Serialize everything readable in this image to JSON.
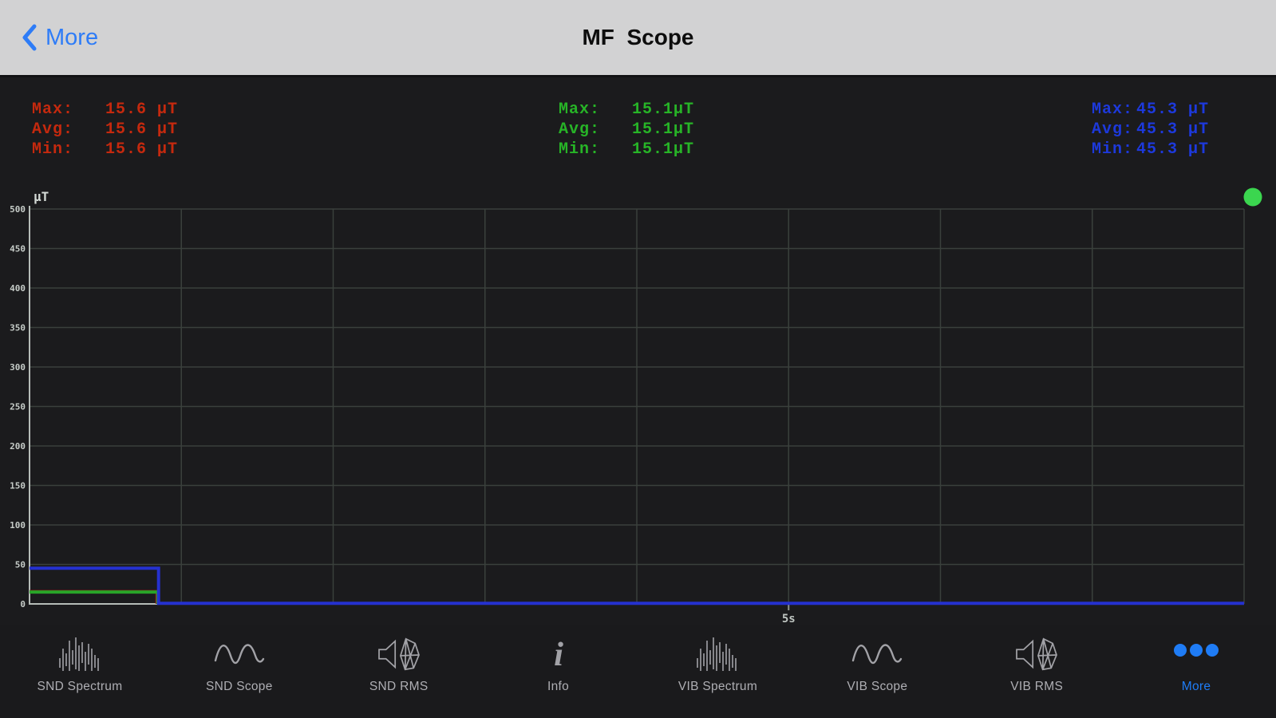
{
  "nav": {
    "back_label": "More",
    "title": "MF  Scope",
    "accent_color": "#2e7cf7",
    "title_color": "#0d0d0d",
    "bar_color": "#d2d2d3"
  },
  "stats_panels": [
    {
      "channel": "red",
      "color": "#c5290e",
      "rows": [
        [
          "Max:",
          "15.6 µT"
        ],
        [
          "Avg:",
          "15.6 µT"
        ],
        [
          "Min:",
          "15.6 µT"
        ]
      ]
    },
    {
      "channel": "green",
      "color": "#27b427",
      "rows": [
        [
          "Max:",
          "15.1µT"
        ],
        [
          "Avg:",
          "15.1µT"
        ],
        [
          "Min:",
          "15.1µT"
        ]
      ]
    },
    {
      "channel": "blue",
      "color": "#1d39dc",
      "rows": [
        [
          "Max:",
          "45.3 µT"
        ],
        [
          "Avg:",
          "45.3 µT"
        ],
        [
          "Min:",
          "45.3 µT"
        ]
      ]
    }
  ],
  "chart_data": {
    "type": "line",
    "title": "MF Scope magnetic-field trace",
    "ylabel": "µT",
    "ylim": [
      0,
      500
    ],
    "yticks": [
      0,
      50,
      100,
      150,
      200,
      250,
      300,
      350,
      400,
      450,
      500
    ],
    "xlim": [
      0,
      8
    ],
    "x_grid_step": 1,
    "xticks": [
      {
        "t": 5,
        "label": "5s"
      }
    ],
    "grid": true,
    "legend": "none",
    "series": [
      {
        "name": "red",
        "color": "#a02014",
        "points": [
          [
            0,
            15.6
          ],
          [
            0.84,
            15.6
          ],
          [
            0.84,
            0
          ]
        ]
      },
      {
        "name": "green",
        "color": "#28a428",
        "points": [
          [
            0,
            15.1
          ],
          [
            0.845,
            15.1
          ],
          [
            0.845,
            0
          ]
        ]
      },
      {
        "name": "blue",
        "color": "#2531cf",
        "points": [
          [
            0,
            45.3
          ],
          [
            0.85,
            45.3
          ],
          [
            0.85,
            0.8
          ],
          [
            8,
            0.8
          ]
        ]
      }
    ],
    "indicator_dot_color": "#3bd64f"
  },
  "tabbar": {
    "items": [
      {
        "label": "SND Spectrum",
        "icon": "spectrum-icon"
      },
      {
        "label": "SND Scope",
        "icon": "scope-icon"
      },
      {
        "label": "SND RMS",
        "icon": "rms-icon"
      },
      {
        "label": "Info",
        "icon": "info-icon"
      },
      {
        "label": "VIB Spectrum",
        "icon": "spectrum-icon"
      },
      {
        "label": "VIB Scope",
        "icon": "scope-icon"
      },
      {
        "label": "VIB RMS",
        "icon": "rms-icon"
      },
      {
        "label": "More",
        "icon": "more-dots-icon",
        "active": true
      }
    ],
    "active_color": "#1f7cf5",
    "inactive_color": "#aeaeb3"
  }
}
